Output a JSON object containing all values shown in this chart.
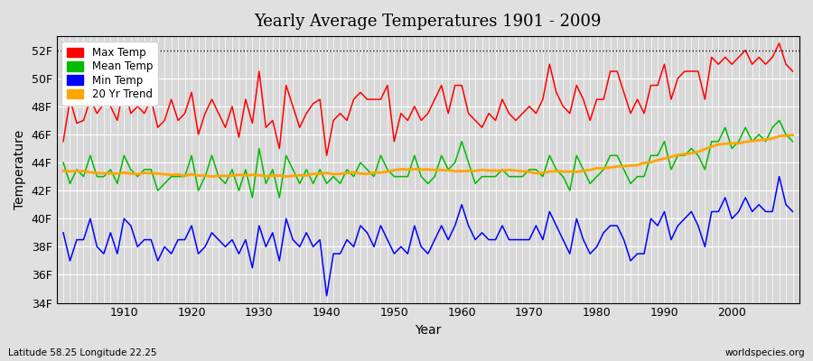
{
  "title": "Yearly Average Temperatures 1901 - 2009",
  "xlabel": "Year",
  "ylabel": "Temperature",
  "subtitle_left": "Latitude 58.25 Longitude 22.25",
  "subtitle_right": "worldspecies.org",
  "years": [
    1901,
    1902,
    1903,
    1904,
    1905,
    1906,
    1907,
    1908,
    1909,
    1910,
    1911,
    1912,
    1913,
    1914,
    1915,
    1916,
    1917,
    1918,
    1919,
    1920,
    1921,
    1922,
    1923,
    1924,
    1925,
    1926,
    1927,
    1928,
    1929,
    1930,
    1931,
    1932,
    1933,
    1934,
    1935,
    1936,
    1937,
    1938,
    1939,
    1940,
    1941,
    1942,
    1943,
    1944,
    1945,
    1946,
    1947,
    1948,
    1949,
    1950,
    1951,
    1952,
    1953,
    1954,
    1955,
    1956,
    1957,
    1958,
    1959,
    1960,
    1961,
    1962,
    1963,
    1964,
    1965,
    1966,
    1967,
    1968,
    1969,
    1970,
    1971,
    1972,
    1973,
    1974,
    1975,
    1976,
    1977,
    1978,
    1979,
    1980,
    1981,
    1982,
    1983,
    1984,
    1985,
    1986,
    1987,
    1988,
    1989,
    1990,
    1991,
    1992,
    1993,
    1994,
    1995,
    1996,
    1997,
    1998,
    1999,
    2000,
    2001,
    2002,
    2003,
    2004,
    2005,
    2006,
    2007,
    2008,
    2009
  ],
  "max_temp": [
    45.5,
    48.5,
    46.8,
    47.0,
    48.5,
    47.5,
    48.2,
    48.0,
    47.0,
    49.5,
    47.5,
    48.0,
    47.5,
    48.5,
    46.5,
    47.0,
    48.5,
    47.0,
    47.5,
    49.0,
    46.0,
    47.5,
    48.5,
    47.5,
    46.5,
    48.0,
    45.8,
    48.5,
    46.8,
    50.5,
    46.5,
    47.0,
    45.0,
    49.5,
    48.0,
    46.5,
    47.5,
    48.2,
    48.5,
    44.5,
    47.0,
    47.5,
    47.0,
    48.5,
    49.0,
    48.5,
    48.5,
    48.5,
    49.5,
    45.5,
    47.5,
    47.0,
    48.0,
    47.0,
    47.5,
    48.5,
    49.5,
    47.5,
    49.5,
    49.5,
    47.5,
    47.0,
    46.5,
    47.5,
    47.0,
    48.5,
    47.5,
    47.0,
    47.5,
    48.0,
    47.5,
    48.5,
    51.0,
    49.0,
    48.0,
    47.5,
    49.5,
    48.5,
    47.0,
    48.5,
    48.5,
    50.5,
    50.5,
    49.0,
    47.5,
    48.5,
    47.5,
    49.5,
    49.5,
    51.0,
    48.5,
    50.0,
    50.5,
    50.5,
    50.5,
    48.5,
    51.5,
    51.0,
    51.5,
    51.0,
    51.5,
    52.0,
    51.0,
    51.5,
    51.0,
    51.5,
    52.5,
    51.0,
    50.5
  ],
  "mean_temp": [
    44.0,
    42.5,
    43.5,
    43.0,
    44.5,
    43.0,
    43.0,
    43.5,
    42.5,
    44.5,
    43.5,
    43.0,
    43.5,
    43.5,
    42.0,
    42.5,
    43.0,
    43.0,
    43.0,
    44.5,
    42.0,
    43.0,
    44.5,
    43.0,
    42.5,
    43.5,
    42.0,
    43.5,
    41.5,
    45.0,
    42.5,
    43.5,
    41.5,
    44.5,
    43.5,
    42.5,
    43.5,
    42.5,
    43.5,
    42.5,
    43.0,
    42.5,
    43.5,
    43.0,
    44.0,
    43.5,
    43.0,
    44.5,
    43.5,
    43.0,
    43.0,
    43.0,
    44.5,
    43.0,
    42.5,
    43.0,
    44.5,
    43.5,
    44.0,
    45.5,
    44.0,
    42.5,
    43.0,
    43.0,
    43.0,
    43.5,
    43.0,
    43.0,
    43.0,
    43.5,
    43.5,
    43.0,
    44.5,
    43.5,
    43.0,
    42.0,
    44.5,
    43.5,
    42.5,
    43.0,
    43.5,
    44.5,
    44.5,
    43.5,
    42.5,
    43.0,
    43.0,
    44.5,
    44.5,
    45.5,
    43.5,
    44.5,
    44.5,
    45.0,
    44.5,
    43.5,
    45.5,
    45.5,
    46.5,
    45.0,
    45.5,
    46.5,
    45.5,
    46.0,
    45.5,
    46.5,
    47.0,
    46.0,
    45.5
  ],
  "min_temp": [
    39.0,
    37.0,
    38.5,
    38.5,
    40.0,
    38.0,
    37.5,
    39.0,
    37.5,
    40.0,
    39.5,
    38.0,
    38.5,
    38.5,
    37.0,
    38.0,
    37.5,
    38.5,
    38.5,
    39.5,
    37.5,
    38.0,
    39.0,
    38.5,
    38.0,
    38.5,
    37.5,
    38.5,
    36.5,
    39.5,
    38.0,
    39.0,
    37.0,
    40.0,
    38.5,
    38.0,
    39.0,
    38.0,
    38.5,
    34.5,
    37.5,
    37.5,
    38.5,
    38.0,
    39.5,
    39.0,
    38.0,
    39.5,
    38.5,
    37.5,
    38.0,
    37.5,
    39.5,
    38.0,
    37.5,
    38.5,
    39.5,
    38.5,
    39.5,
    41.0,
    39.5,
    38.5,
    39.0,
    38.5,
    38.5,
    39.5,
    38.5,
    38.5,
    38.5,
    38.5,
    39.5,
    38.5,
    40.5,
    39.5,
    38.5,
    37.5,
    40.0,
    38.5,
    37.5,
    38.0,
    39.0,
    39.5,
    39.5,
    38.5,
    37.0,
    37.5,
    37.5,
    40.0,
    39.5,
    40.5,
    38.5,
    39.5,
    40.0,
    40.5,
    39.5,
    38.0,
    40.5,
    40.5,
    41.5,
    40.0,
    40.5,
    41.5,
    40.5,
    41.0,
    40.5,
    40.5,
    43.0,
    41.0,
    40.5
  ],
  "trend_color": "#FFA500",
  "max_color": "#FF0000",
  "mean_color": "#00BB00",
  "min_color": "#0000FF",
  "bg_color": "#E0E0E0",
  "plot_bg_color": "#D8D8D8",
  "grid_color": "#FFFFFF",
  "ylim_min": 34,
  "ylim_max": 53,
  "yticks": [
    34,
    36,
    38,
    40,
    42,
    44,
    46,
    48,
    50,
    52
  ],
  "ytick_labels": [
    "34F",
    "36F",
    "38F",
    "40F",
    "42F",
    "44F",
    "46F",
    "48F",
    "50F",
    "52F"
  ],
  "dotted_line_y": 52,
  "trend_window": 20
}
